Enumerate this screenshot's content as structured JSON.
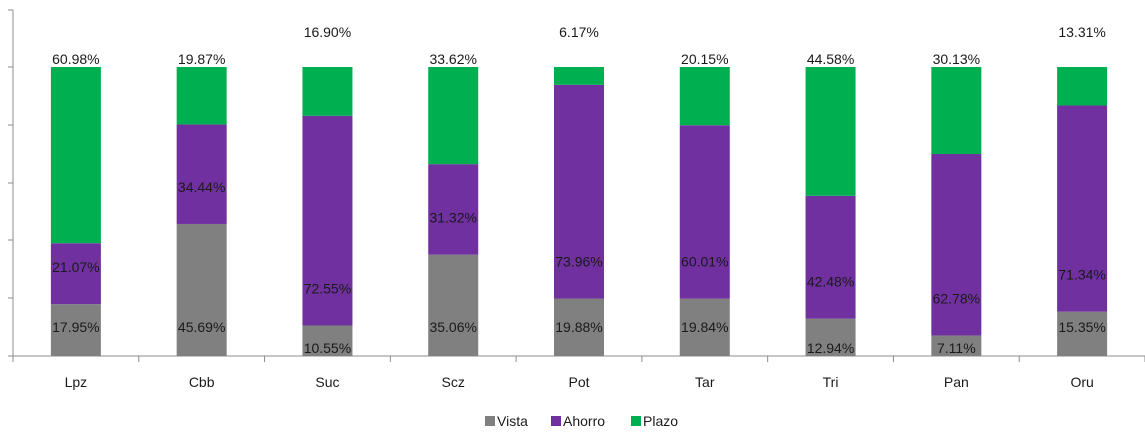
{
  "chart_data": {
    "type": "bar",
    "stacked": true,
    "normalized": true,
    "categories": [
      "Lpz",
      "Cbb",
      "Suc",
      "Scz",
      "Pot",
      "Tar",
      "Tri",
      "Pan",
      "Oru"
    ],
    "series": [
      {
        "name": "Vista",
        "color": "#808080",
        "values": [
          17.95,
          45.69,
          10.55,
          35.06,
          19.88,
          19.84,
          12.94,
          7.11,
          15.35
        ],
        "labels": [
          "17.95%",
          "45.69%",
          "10.55%",
          "35.06%",
          "19.88%",
          "19.84%",
          "12.94%",
          "7.11%",
          "15.35%"
        ]
      },
      {
        "name": "Ahorro",
        "color": "#7030A0",
        "values": [
          21.07,
          34.44,
          72.55,
          31.32,
          73.96,
          60.01,
          42.48,
          62.78,
          71.34
        ],
        "labels": [
          "21.07%",
          "34.44%",
          "72.55%",
          "31.32%",
          "73.96%",
          "60.01%",
          "42.48%",
          "62.78%",
          "71.34%"
        ]
      },
      {
        "name": "Plazo",
        "color": "#00B050",
        "values": [
          60.98,
          19.87,
          16.9,
          33.62,
          6.17,
          20.15,
          44.58,
          30.13,
          13.31
        ],
        "labels": [
          "60.98%",
          "19.87%",
          "16.90%",
          "33.62%",
          "6.17%",
          "20.15%",
          "44.58%",
          "30.13%",
          "13.31%"
        ]
      }
    ],
    "ylim": [
      0,
      100
    ],
    "grid": false,
    "legend": "bottom"
  }
}
